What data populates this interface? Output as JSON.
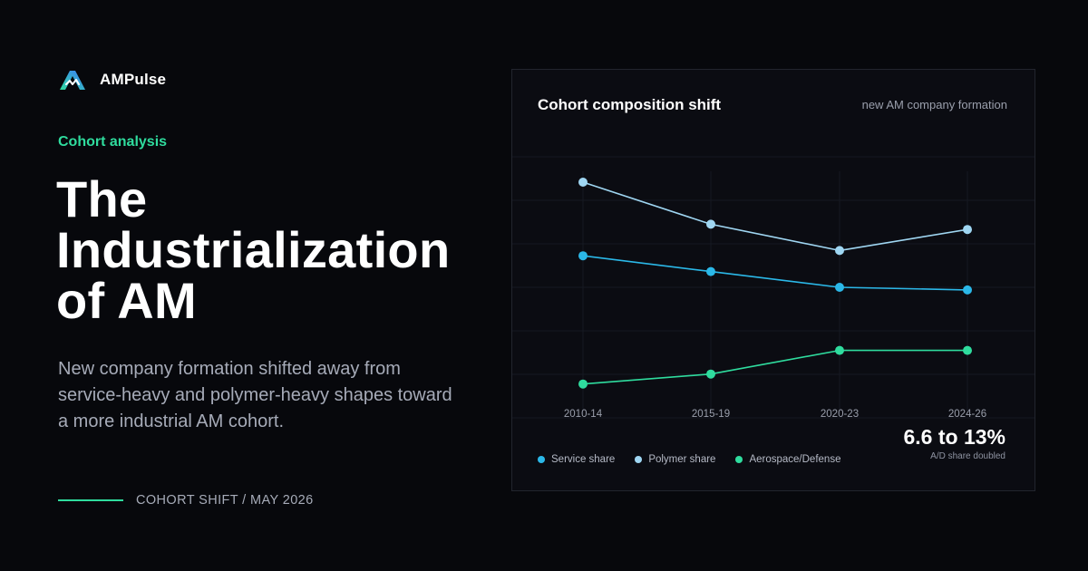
{
  "brand": {
    "name": "AMPulse",
    "logo_icon": "ampulse-logo-icon"
  },
  "eyebrow": "Cohort analysis",
  "headline": "The Industrialization of AM",
  "subtitle": "New company formation shifted away from service-heavy and polymer-heavy shapes toward a more industrial AM cohort.",
  "footer": {
    "text": "COHORT SHIFT / MAY 2026",
    "accent_color": "#2fdc9e"
  },
  "panel": {
    "title": "Cohort composition shift",
    "note": "new AM company formation",
    "stat_value": "6.6 to 13%",
    "stat_label": "A/D share doubled"
  },
  "chart_data": {
    "type": "line",
    "categories": [
      "2010-14",
      "2015-19",
      "2020-23",
      "2024-26"
    ],
    "series": [
      {
        "name": "Polymer share",
        "values": [
          45,
          37,
          32,
          36
        ],
        "color": "#9fd6f2"
      },
      {
        "name": "Service share",
        "values": [
          31,
          28,
          25,
          24.5
        ],
        "color": "#2bb8e8"
      },
      {
        "name": "Aerospace/Defense",
        "values": [
          6.6,
          8.5,
          13,
          13
        ],
        "color": "#2fdc9e"
      }
    ],
    "ylim": [
      0,
      50
    ],
    "grid": true,
    "legend": "bottom-left",
    "xlabel": "",
    "ylabel": ""
  }
}
